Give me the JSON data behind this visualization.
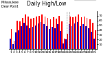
{
  "title": "Milwaukee\nDew Point",
  "subtitle": "Daily High/Low",
  "categories": [
    "1",
    "2",
    "3",
    "4",
    "5",
    "6",
    "7",
    "8",
    "9",
    "10",
    "11",
    "12",
    "13",
    "14",
    "15",
    "16",
    "17",
    "18",
    "19",
    "20",
    "21",
    "22",
    "23",
    "24",
    "25",
    "26",
    "27",
    "28",
    "29",
    "30",
    "31"
  ],
  "high_values": [
    42,
    18,
    60,
    58,
    65,
    72,
    68,
    64,
    65,
    68,
    70,
    72,
    68,
    65,
    62,
    66,
    64,
    70,
    58,
    22,
    32,
    68,
    66,
    68,
    72,
    66,
    68,
    65,
    62,
    55,
    40
  ],
  "low_values": [
    22,
    10,
    35,
    40,
    48,
    55,
    50,
    44,
    46,
    50,
    54,
    56,
    52,
    48,
    42,
    46,
    44,
    52,
    38,
    12,
    20,
    52,
    48,
    54,
    56,
    48,
    52,
    48,
    44,
    36,
    22
  ],
  "high_color": "#ff0000",
  "low_color": "#0000cc",
  "bg_color": "#ffffff",
  "ylim": [
    0,
    80
  ],
  "yticks_right": [
    70,
    60,
    50,
    40,
    30,
    20,
    10
  ],
  "bar_width": 0.42,
  "title_fontsize": 3.5,
  "subtitle_fontsize": 5.5,
  "tick_fontsize": 3.2,
  "legend_high": "High",
  "legend_low": "Low",
  "dashed_lines": [
    20,
    21
  ]
}
